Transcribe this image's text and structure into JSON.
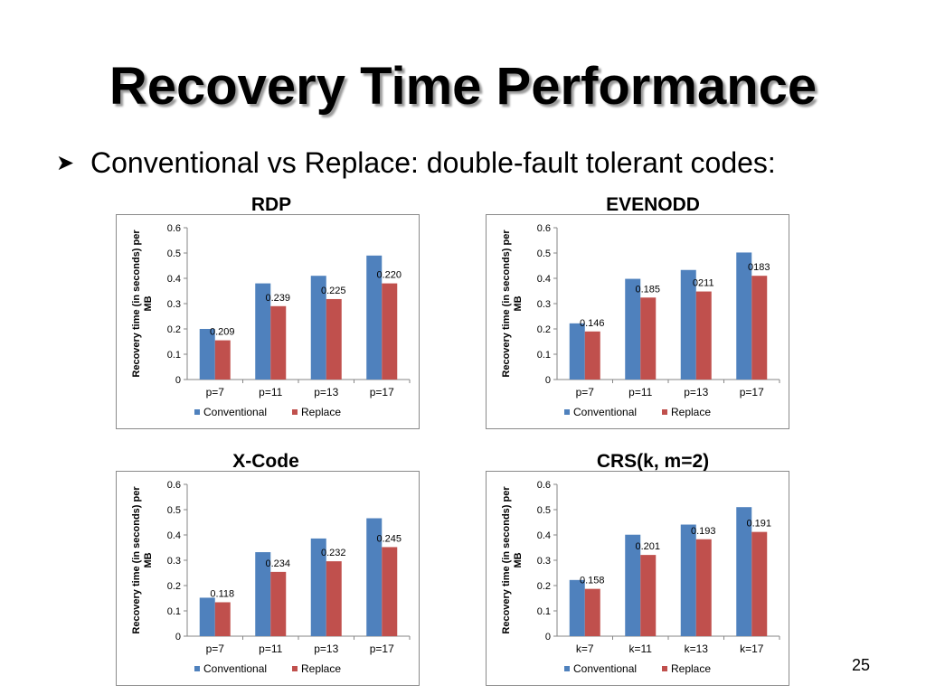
{
  "slide": {
    "title": "Recovery Time Performance",
    "bullet": "Conventional vs Replace: double-fault tolerant codes:",
    "bullet_icon": "arrow-bullet-icon",
    "slide_number": "25"
  },
  "colors": {
    "conventional": "#4f81bd",
    "replace": "#c0504d"
  },
  "chart_data": [
    {
      "type": "bar",
      "title": "RDP",
      "categories": [
        "p=7",
        "p=11",
        "p=13",
        "p=17"
      ],
      "series": [
        {
          "name": "Conventional",
          "values": [
            0.2,
            0.38,
            0.41,
            0.49
          ]
        },
        {
          "name": "Replace",
          "values": [
            0.155,
            0.29,
            0.318,
            0.38
          ]
        }
      ],
      "annotations": [
        "0.209",
        "0.239",
        "0.225",
        "0.220"
      ],
      "ylabel": "Recovery time (in seconds) per MB",
      "yticks": [
        "0",
        "0.1",
        "0.2",
        "0.3",
        "0.4",
        "0.5",
        "0.6"
      ],
      "ylim": [
        0,
        0.6
      ],
      "grid": false,
      "legend": "bottom"
    },
    {
      "type": "bar",
      "title": "EVENODD",
      "categories": [
        "p=7",
        "p=11",
        "p=13",
        "p=17"
      ],
      "series": [
        {
          "name": "Conventional",
          "values": [
            0.222,
            0.398,
            0.433,
            0.502
          ]
        },
        {
          "name": "Replace",
          "values": [
            0.19,
            0.324,
            0.348,
            0.41
          ]
        }
      ],
      "annotations": [
        "0.146",
        "0.185",
        "0211",
        "0183"
      ],
      "ylabel": "Recovery time (in seconds) per MB",
      "yticks": [
        "0",
        "0.1",
        "0.2",
        "0.3",
        "0.4",
        "0.5",
        "0.6"
      ],
      "ylim": [
        0,
        0.6
      ],
      "grid": false,
      "legend": "bottom"
    },
    {
      "type": "bar",
      "title": "X-Code",
      "categories": [
        "p=7",
        "p=11",
        "p=13",
        "p=17"
      ],
      "series": [
        {
          "name": "Conventional",
          "values": [
            0.152,
            0.332,
            0.386,
            0.466
          ]
        },
        {
          "name": "Replace",
          "values": [
            0.134,
            0.254,
            0.296,
            0.352
          ]
        }
      ],
      "annotations": [
        "0.118",
        "0.234",
        "0.232",
        "0.245"
      ],
      "ylabel": "Recovery time (in seconds) per MB",
      "yticks": [
        "0",
        "0.1",
        "0.2",
        "0.3",
        "0.4",
        "0.5",
        "0.6"
      ],
      "ylim": [
        0,
        0.6
      ],
      "grid": false,
      "legend": "bottom"
    },
    {
      "type": "bar",
      "title": "CRS(k, m=2)",
      "categories": [
        "k=7",
        "k=11",
        "k=13",
        "k=17"
      ],
      "series": [
        {
          "name": "Conventional",
          "values": [
            0.222,
            0.401,
            0.441,
            0.51
          ]
        },
        {
          "name": "Replace",
          "values": [
            0.187,
            0.321,
            0.383,
            0.412
          ]
        }
      ],
      "annotations": [
        "0.158",
        "0.201",
        "0.193",
        "0.191"
      ],
      "ylabel": "Recovery time (in seconds) per MB",
      "yticks": [
        "0",
        "0.1",
        "0.2",
        "0.3",
        "0.4",
        "0.5",
        "0.6"
      ],
      "ylim": [
        0,
        0.6
      ],
      "grid": false,
      "legend": "bottom"
    }
  ]
}
